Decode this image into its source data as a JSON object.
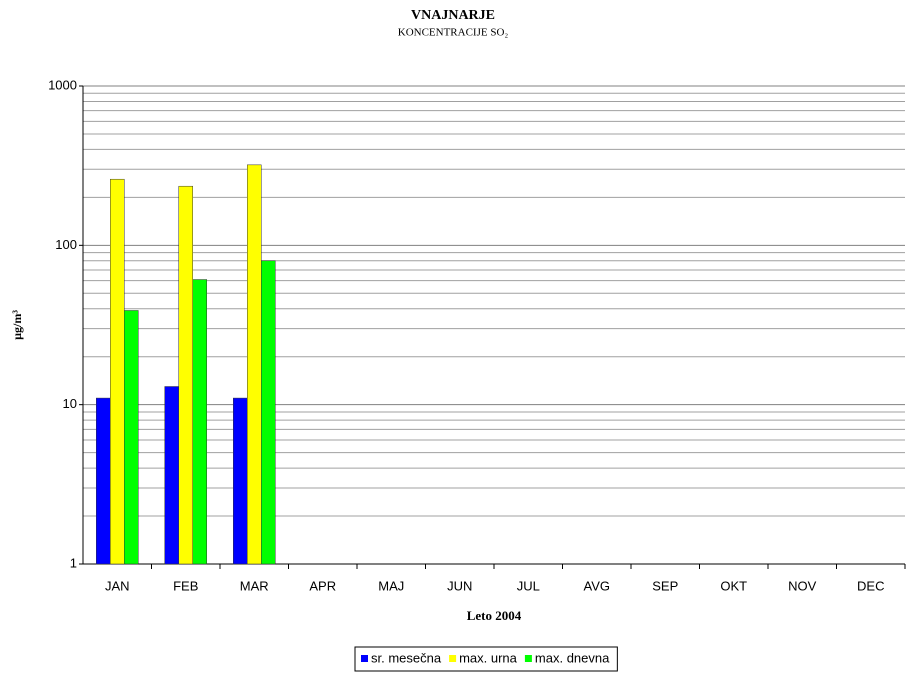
{
  "chart_data": {
    "type": "bar",
    "title": "VNAJNARJE",
    "subtitle": "KONCENTRACIJE SO₂",
    "x_label": "Leto 2004",
    "y_label": "µg/m³",
    "categories": [
      "JAN",
      "FEB",
      "MAR",
      "APR",
      "MAJ",
      "JUN",
      "JUL",
      "AVG",
      "SEP",
      "OKT",
      "NOV",
      "DEC"
    ],
    "series": [
      {
        "name": "sr. mesečna",
        "color": "#0000ff",
        "values": [
          11,
          13,
          11,
          null,
          null,
          null,
          null,
          null,
          null,
          null,
          null,
          null
        ]
      },
      {
        "name": "max. urna",
        "color": "#ffff00",
        "values": [
          260,
          235,
          320,
          null,
          null,
          null,
          null,
          null,
          null,
          null,
          null,
          null
        ]
      },
      {
        "name": "max. dnevna",
        "color": "#00ff00",
        "values": [
          39,
          61,
          80,
          null,
          null,
          null,
          null,
          null,
          null,
          null,
          null,
          null
        ]
      }
    ],
    "ylim": [
      1,
      1000
    ],
    "yticks": [
      1,
      10,
      100,
      1000
    ],
    "log_scale": true,
    "grid": true,
    "legend": "bottom"
  }
}
